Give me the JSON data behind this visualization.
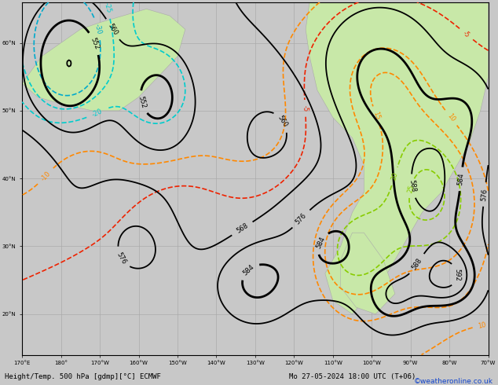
{
  "bottom_label_left": "Height/Temp. 500 hPa [gdmp][°C] ECMWF",
  "bottom_label_right": "Mo 27-05-2024 18:00 UTC (T+06)",
  "copyright": "©weatheronline.co.uk",
  "bg_ocean": "#c8c8c8",
  "bg_land": "#c8e8a8",
  "figsize": [
    6.34,
    4.9
  ],
  "dpi": 100,
  "label_fontsize": 6.5,
  "copyright_fontsize": 6.5
}
